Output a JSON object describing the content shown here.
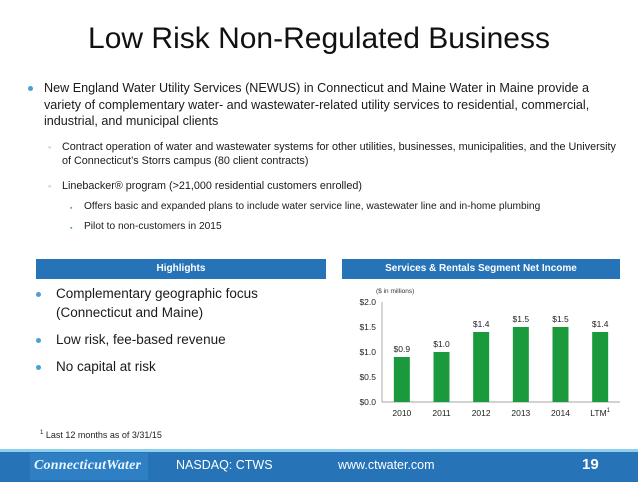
{
  "slide": {
    "title": "Low Risk Non-Regulated Business",
    "bullet_main": "New England Water Utility Services (NEWUS) in Connecticut and Maine Water in Maine provide a variety of complementary water- and wastewater-related utility services to residential, commercial, industrial, and municipal clients",
    "sub_bullet_1": "Contract operation of water and wastewater systems for other utilities, businesses, municipalities, and the University of Connecticut’s Storrs campus (80 client contracts)",
    "sub_bullet_2": "Linebacker® program (>21,000 residential customers enrolled)",
    "sub_sub_1": "Offers basic and expanded plans to include water service line, wastewater line and in-home plumbing",
    "sub_sub_2": "Pilot to non-customers in 2015"
  },
  "highlights": {
    "header": "Highlights",
    "items": [
      "Complementary geographic focus (Connecticut and Maine)",
      "Low risk, fee-based revenue",
      "No capital at risk"
    ]
  },
  "chart_panel": {
    "header": "Services & Rentals Segment Net Income"
  },
  "chart_data": {
    "type": "bar",
    "unit_label": "($ in millions)",
    "categories": [
      "2010",
      "2011",
      "2012",
      "2013",
      "2014",
      "LTM"
    ],
    "last_category_superscript": "1",
    "values": [
      0.9,
      1.0,
      1.4,
      1.5,
      1.5,
      1.4
    ],
    "data_labels": [
      "$0.9",
      "$1.0",
      "$1.4",
      "$1.5",
      "$1.5",
      "$1.4"
    ],
    "yticks": [
      "$0.0",
      "$0.5",
      "$1.0",
      "$1.5",
      "$2.0"
    ],
    "ylim": [
      0,
      2.0
    ],
    "bar_color": "#1a9a3c"
  },
  "footnote": {
    "marker": "1",
    "text": "Last 12 months as of 3/31/15"
  },
  "footer": {
    "logo_text": "ConnecticutWater",
    "ticker": "NASDAQ: CTWS",
    "website": "www.ctwater.com",
    "page_number": "19"
  },
  "colors": {
    "accent": "#2673b8",
    "bullet": "#4a9fd5",
    "bar": "#1a9a3c"
  }
}
